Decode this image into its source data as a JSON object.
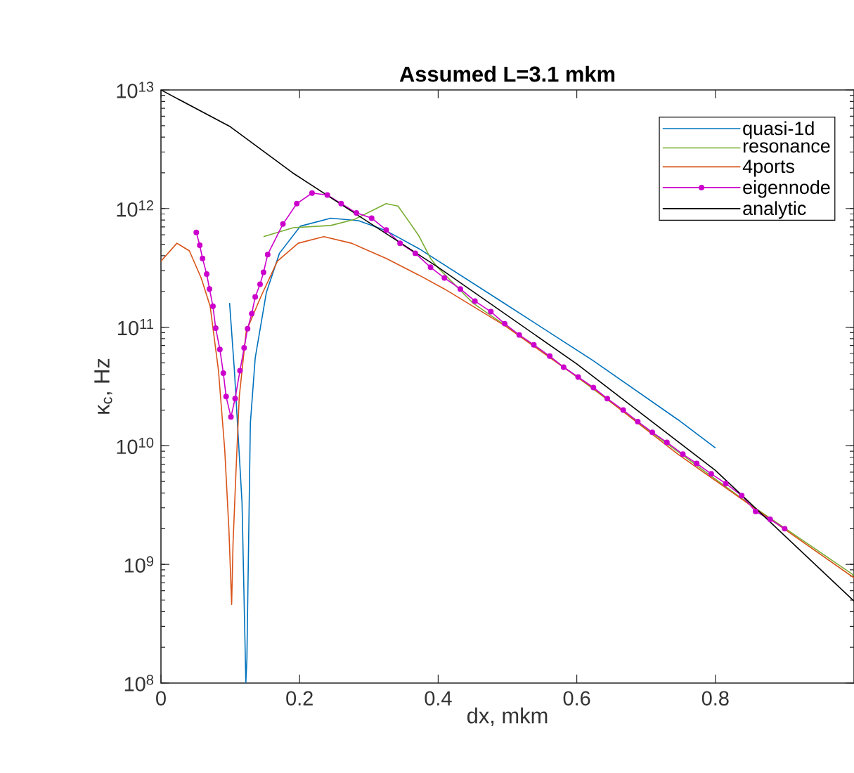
{
  "chart_data": {
    "type": "line",
    "title": "**Assumed L=3.1 mkm**",
    "xlabel": "dx, mkm",
    "ylabel": "κ$_{c}$, Hz",
    "log": "y",
    "legend": "top right",
    "xlim": [
      0,
      1
    ],
    "ylim": [
      100000000.0,
      10000000000000.0
    ],
    "xticks": [
      0,
      0.2,
      0.4,
      0.6,
      0.8
    ],
    "yticks": [
      {
        "value": 100000000.0,
        "label": "10$^{8}$"
      },
      {
        "value": 1000000000.0,
        "label": "10$^{9}$"
      },
      {
        "value": 10000000000.0,
        "label": "10$^{10}$"
      },
      {
        "value": 100000000000.0,
        "label": "10$^{11}$"
      },
      {
        "value": 1000000000000.0,
        "label": "10$^{12}$"
      },
      {
        "value": 10000000000000.0,
        "label": "10$^{13}$"
      }
    ],
    "series": [
      {
        "name": "quasi-1d",
        "color": "#0072bd",
        "x": [
          0.099,
          0.106,
          0.117,
          0.121,
          0.1225,
          0.124,
          0.129,
          0.136,
          0.152,
          0.171,
          0.201,
          0.245,
          0.285,
          0.325,
          0.372,
          0.496,
          0.622,
          0.746,
          0.8
        ],
        "values": [
          160000000000.0,
          43000000000.0,
          3300000000.0,
          260000000.0,
          100000000.0,
          160000000.0,
          15500000000.0,
          55000000000.0,
          195000000000.0,
          420000000000.0,
          710000000000.0,
          830000000000.0,
          790000000000.0,
          650000000000.0,
          460000000000.0,
          158000000000.0,
          53000000000.0,
          16600000000.0,
          9600000000.0
        ]
      },
      {
        "name": "resonance",
        "color": "#77ac30",
        "x": [
          0.148,
          0.191,
          0.245,
          0.279,
          0.325,
          0.342,
          0.359,
          0.372,
          0.389,
          0.399,
          0.45,
          0.55,
          0.7,
          0.85,
          1.0
        ],
        "values": [
          580000000000.0,
          690000000000.0,
          720000000000.0,
          810000000000.0,
          1100000000000.0,
          1050000000000.0,
          760000000000.0,
          590000000000.0,
          380000000000.0,
          320000000000.0,
          160000000000.0,
          63000000000.0,
          14000000000.0,
          3200000000.0,
          810000000.0
        ]
      },
      {
        "name": "4ports",
        "color": "#d95319",
        "x": [
          0,
          0.023,
          0.041,
          0.058,
          0.071,
          0.083,
          0.092,
          0.098,
          0.102,
          0.104,
          0.108,
          0.113,
          0.123,
          0.144,
          0.168,
          0.198,
          0.235,
          0.275,
          0.325,
          0.372,
          0.409,
          0.496,
          0.622,
          0.746,
          0.871,
          1.0
        ],
        "values": [
          360000000000.0,
          510000000000.0,
          440000000000.0,
          260000000000.0,
          150000000000.0,
          43000000000.0,
          9300000000.0,
          2000000000.0,
          460000000.0,
          1500000000.0,
          5600000000.0,
          26000000000.0,
          92000000000.0,
          180000000000.0,
          360000000000.0,
          510000000000.0,
          580000000000.0,
          510000000000.0,
          380000000000.0,
          275000000000.0,
          210000000000.0,
          103000000000.0,
          31000000000.0,
          8500000000.0,
          2600000000.0,
          770000000.0
        ]
      },
      {
        "name": "eigennode",
        "color": "#cc00cc",
        "marker": "circle",
        "x": [
          0.051,
          0.056,
          0.06,
          0.066,
          0.07,
          0.075,
          0.079,
          0.085,
          0.09,
          0.094,
          0.101,
          0.107,
          0.114,
          0.12,
          0.125,
          0.131,
          0.136,
          0.143,
          0.148,
          0.154,
          0.176,
          0.196,
          0.218,
          0.24,
          0.26,
          0.282,
          0.304,
          0.325,
          0.345,
          0.367,
          0.389,
          0.409,
          0.432,
          0.453,
          0.476,
          0.496,
          0.517,
          0.538,
          0.561,
          0.581,
          0.602,
          0.624,
          0.644,
          0.667,
          0.688,
          0.709,
          0.73,
          0.753,
          0.773,
          0.794,
          0.815,
          0.838,
          0.858,
          0.879,
          0.9
        ],
        "values": [
          630000000000.0,
          490000000000.0,
          380000000000.0,
          280000000000.0,
          210000000000.0,
          150000000000.0,
          98000000000.0,
          65000000000.0,
          41000000000.0,
          26000000000.0,
          17500000000.0,
          25000000000.0,
          43000000000.0,
          67000000000.0,
          97000000000.0,
          130000000000.0,
          180000000000.0,
          230000000000.0,
          290000000000.0,
          410000000000.0,
          740000000000.0,
          1100000000000.0,
          1350000000000.0,
          1300000000000.0,
          1100000000000.0,
          920000000000.0,
          830000000000.0,
          660000000000.0,
          510000000000.0,
          420000000000.0,
          320000000000.0,
          260000000000.0,
          210000000000.0,
          166000000000.0,
          135000000000.0,
          107000000000.0,
          86000000000.0,
          71000000000.0,
          57000000000.0,
          46000000000.0,
          38000000000.0,
          31000000000.0,
          25000000000.0,
          20000000000.0,
          16000000000.0,
          13000000000.0,
          10700000000.0,
          8500000000.0,
          7100000000.0,
          5800000000.0,
          4800000000.0,
          3800000000.0,
          2800000000.0,
          2400000000.0,
          2000000000.0
        ]
      },
      {
        "name": "analytic",
        "color": "#000000",
        "x": [
          0,
          0.1,
          0.19,
          0.28,
          0.4,
          0.6,
          0.8,
          0.86,
          1.0
        ],
        "values": [
          10000000000000.0,
          4900000000000.0,
          2000000000000.0,
          910000000000.0,
          320000000000.0,
          49000000000.0,
          6200000000.0,
          2900000000.0,
          490000000.0
        ]
      }
    ]
  }
}
